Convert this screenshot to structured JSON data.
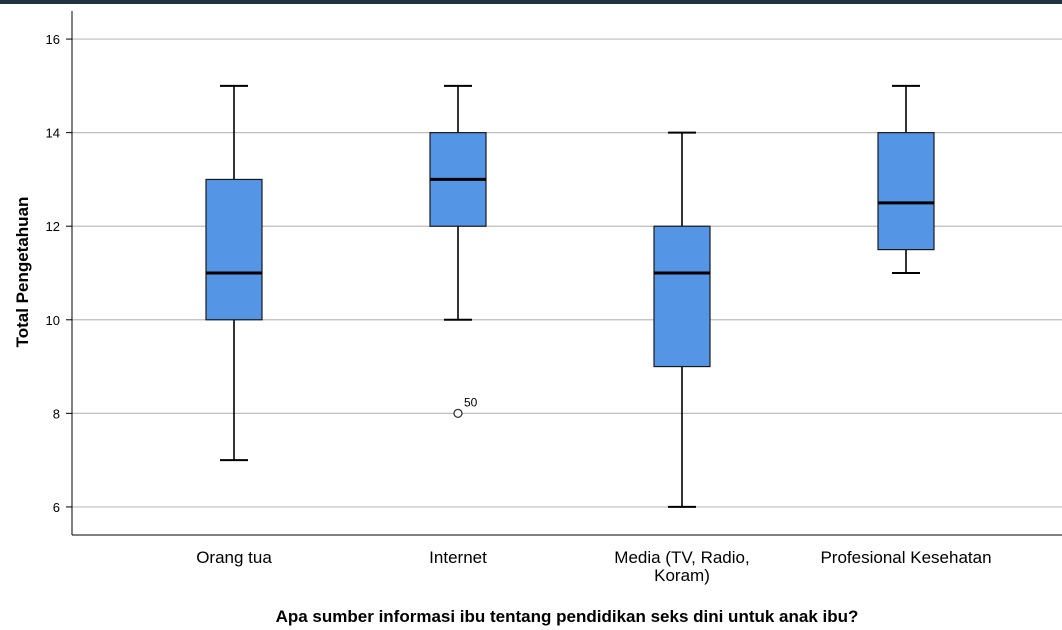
{
  "chart_data": {
    "type": "boxplot",
    "xlabel": "Apa sumber informasi ibu tentang pendidikan seks dini untuk anak ibu?",
    "ylabel": "Total Pengetahuan",
    "ylim": [
      5.4,
      16.6
    ],
    "yticks": [
      6,
      8,
      10,
      12,
      14,
      16
    ],
    "grid": true,
    "box_color": "#5495e6",
    "categories": [
      {
        "label_lines": [
          "Orang tua"
        ],
        "min": 7,
        "q1": 10,
        "median": 11,
        "q3": 13,
        "max": 15,
        "outliers": []
      },
      {
        "label_lines": [
          "Internet"
        ],
        "min": 10,
        "q1": 12,
        "median": 13,
        "q3": 14,
        "max": 15,
        "outliers": [
          {
            "value": 8,
            "label": "50"
          }
        ]
      },
      {
        "label_lines": [
          "Media (TV, Radio,",
          "Koram)"
        ],
        "min": 6,
        "q1": 9,
        "median": 11,
        "q3": 12,
        "max": 14,
        "outliers": []
      },
      {
        "label_lines": [
          "Profesional Kesehatan"
        ],
        "min": 11,
        "q1": 11.5,
        "median": 12.5,
        "q3": 14,
        "max": 15,
        "outliers": []
      }
    ]
  }
}
